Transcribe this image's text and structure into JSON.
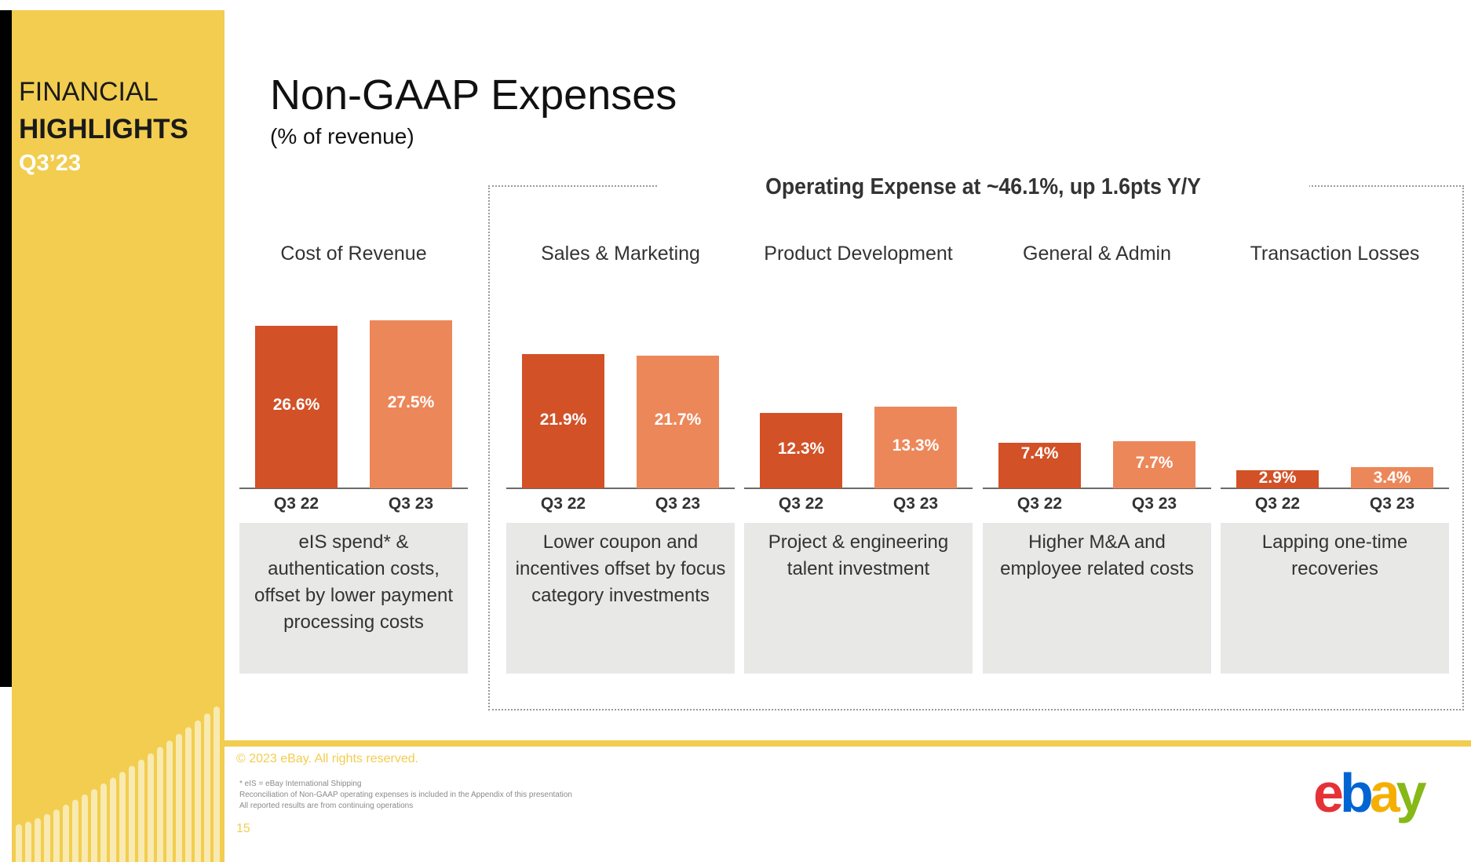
{
  "sidebar": {
    "line1": "FINANCIAL",
    "line2": "HIGHLIGHTS",
    "line3": "Q3’23"
  },
  "header": {
    "title": "Non-GAAP Expenses",
    "subtitle": "(% of revenue)"
  },
  "opex_group_title": "Operating Expense at ~46.1%, up 1.6pts Y/Y",
  "colors": {
    "q3_22": "#D25127",
    "q3_23": "#EC875A",
    "brand_yellow": "#F2CD4F",
    "description_bg": "#E8E8E7"
  },
  "chart_data": {
    "type": "bar",
    "title": "Non-GAAP Expenses",
    "subtitle": "(% of revenue)",
    "xlabel": "",
    "ylabel": "% of revenue",
    "grid": false,
    "legend": "none",
    "series_names": [
      "Q3 22",
      "Q3 23"
    ],
    "groups": [
      {
        "category": "Cost of Revenue",
        "values": [
          26.6,
          27.5
        ],
        "labels": [
          "26.6%",
          "27.5%"
        ],
        "ticks": [
          "Q3 22",
          "Q3 23"
        ],
        "description": "eIS spend* & authentication costs, offset by lower payment processing costs"
      },
      {
        "category": "Sales & Marketing",
        "values": [
          21.9,
          21.7
        ],
        "labels": [
          "21.9%",
          "21.7%"
        ],
        "ticks": [
          "Q3 22",
          "Q3 23"
        ],
        "description": "Lower coupon and incentives offset by focus category investments"
      },
      {
        "category": "Product Development",
        "values": [
          12.3,
          13.3
        ],
        "labels": [
          "12.3%",
          "13.3%"
        ],
        "ticks": [
          "Q3 22",
          "Q3 23"
        ],
        "description": "Project & engineering talent investment"
      },
      {
        "category": "General & Admin",
        "values": [
          7.4,
          7.7
        ],
        "labels": [
          "7.4%",
          "7.7%"
        ],
        "ticks": [
          "Q3 22",
          "Q3 23"
        ],
        "description": "Higher M&A and employee related costs"
      },
      {
        "category": "Transaction Losses",
        "values": [
          2.9,
          3.4
        ],
        "labels": [
          "2.9%",
          "3.4%"
        ],
        "ticks": [
          "Q3 22",
          "Q3 23"
        ],
        "description": "Lapping one-time recoveries"
      }
    ],
    "annotation": "Operating Expense at ~46.1%, up 1.6pts Y/Y"
  },
  "footer": {
    "copyright": "© 2023 eBay. All rights reserved.",
    "footnotes": [
      "* eIS = eBay International Shipping",
      "Reconciliation of Non-GAAP operating expenses is included in the Appendix of this presentation",
      "All reported results are from continuing operations"
    ],
    "page_number": "15",
    "logo_letters": [
      "e",
      "b",
      "a",
      "y"
    ],
    "logo_colors": [
      "#E53238",
      "#0064D2",
      "#F5AF02",
      "#86B817"
    ]
  }
}
